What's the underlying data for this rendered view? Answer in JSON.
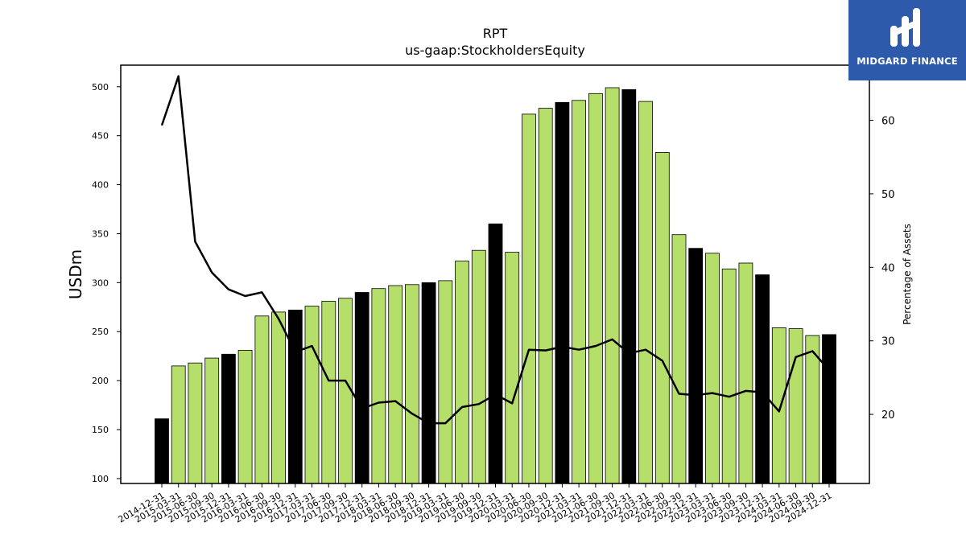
{
  "chart_data": {
    "type": "bar",
    "title": "RPT",
    "subtitle": "us-gaap:StockholdersEquity",
    "ylabel": "USDm",
    "y2label": "Percentage of Assets",
    "ylim": [
      95,
      522
    ],
    "y2lim": [
      10.6,
      67.5
    ],
    "yticks": [
      100,
      150,
      200,
      250,
      300,
      350,
      400,
      450,
      500
    ],
    "y2ticks": [
      20,
      30,
      40,
      50,
      60
    ],
    "grid": false,
    "categories": [
      "2014-12-31",
      "2015-03-31",
      "2015-06-30",
      "2015-09-30",
      "2015-12-31",
      "2016-03-31",
      "2016-06-30",
      "2016-09-30",
      "2016-12-31",
      "2017-03-31",
      "2017-06-30",
      "2017-09-30",
      "2017-12-31",
      "2018-03-31",
      "2018-06-30",
      "2018-09-30",
      "2018-12-31",
      "2019-03-31",
      "2019-06-30",
      "2019-09-30",
      "2019-12-31",
      "2020-03-31",
      "2020-06-30",
      "2020-09-30",
      "2020-12-31",
      "2021-03-31",
      "2021-06-30",
      "2021-09-30",
      "2021-12-31",
      "2022-03-31",
      "2022-06-30",
      "2022-09-30",
      "2022-12-31",
      "2023-03-31",
      "2023-06-30",
      "2023-09-30",
      "2023-12-31",
      "2024-03-31",
      "2024-06-30",
      "2024-09-30",
      "2024-12-31"
    ],
    "series": [
      {
        "type": "bar",
        "axis": "left",
        "values": [
          161,
          215,
          218,
          223,
          227,
          231,
          266,
          270,
          272,
          276,
          281,
          284,
          290,
          294,
          297,
          298,
          300,
          302,
          322,
          333,
          360,
          331,
          472,
          478,
          484,
          486,
          493,
          499,
          497,
          485,
          433,
          349,
          335,
          330,
          314,
          320,
          308,
          254,
          253,
          246,
          247
        ]
      },
      {
        "type": "line",
        "axis": "right",
        "values": [
          59.3,
          66.0,
          43.5,
          39.3,
          37.0,
          36.1,
          36.6,
          33.0,
          28.5,
          29.3,
          24.6,
          24.6,
          20.8,
          21.6,
          21.8,
          20.1,
          18.8,
          18.8,
          21.0,
          21.4,
          22.7,
          21.5,
          28.8,
          28.7,
          29.2,
          28.8,
          29.3,
          30.2,
          28.3,
          28.8,
          27.3,
          22.8,
          22.6,
          22.9,
          22.4,
          23.2,
          23.0,
          20.4,
          27.8,
          28.6,
          26.0
        ]
      }
    ],
    "colors": {
      "bar_default": "#b5de6a",
      "bar_highlight": "#000000",
      "line": "#000000"
    },
    "highlight_suffix": "12-31"
  },
  "brand": {
    "name": "MIDGARD FINANCE",
    "color": "#2e5aac"
  }
}
